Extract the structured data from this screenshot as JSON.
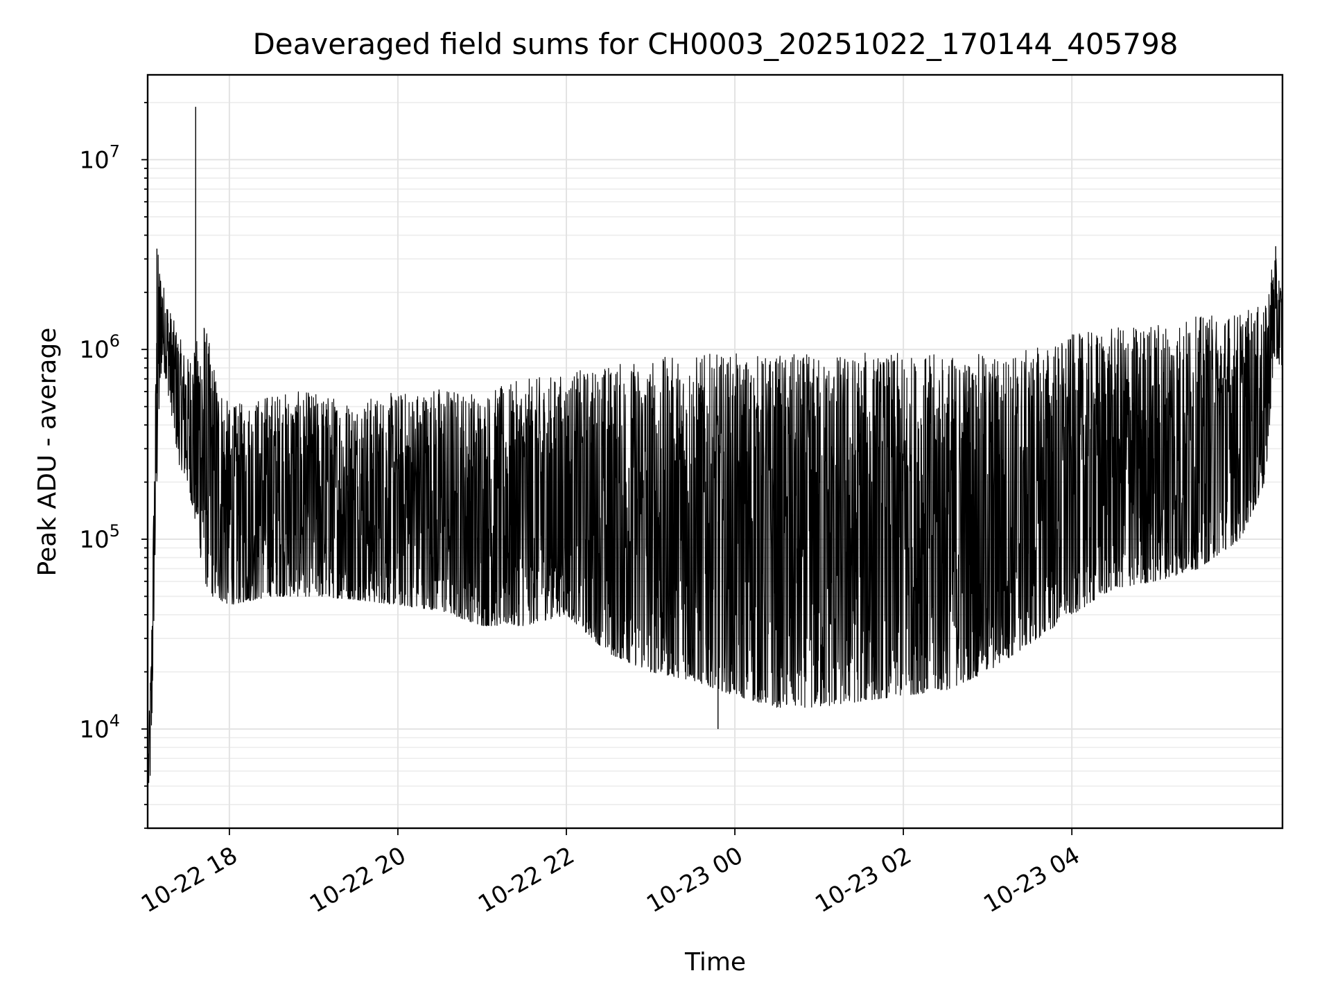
{
  "chart_data": {
    "type": "line",
    "title": "Deaveraged field sums for CH0003_20251022_170144_405798",
    "xlabel": "Time",
    "ylabel": "Peak ADU - average",
    "yscale": "log",
    "ylim": [
      3000,
      28000000
    ],
    "xlim_hours": [
      -0.97,
      12.5
    ],
    "x_origin": "2025-10-22 18:00",
    "grid": true,
    "legend": "none",
    "line_color": "#000000",
    "x_ticks": [
      {
        "hours": 0,
        "label": "10-22 18"
      },
      {
        "hours": 2,
        "label": "10-22 20"
      },
      {
        "hours": 4,
        "label": "10-22 22"
      },
      {
        "hours": 6,
        "label": "10-23 00"
      },
      {
        "hours": 8,
        "label": "10-23 02"
      },
      {
        "hours": 10,
        "label": "10-23 04"
      }
    ],
    "y_ticks": [
      {
        "value": 10000,
        "base": "10",
        "exp": "4"
      },
      {
        "value": 100000,
        "base": "10",
        "exp": "5"
      },
      {
        "value": 1000000,
        "base": "10",
        "exp": "6"
      },
      {
        "value": 10000000,
        "base": "10",
        "exp": "7"
      }
    ],
    "envelope": [
      {
        "t": -0.96,
        "low": 4500,
        "high": 9000
      },
      {
        "t": -0.93,
        "low": 6000,
        "high": 25000
      },
      {
        "t": -0.9,
        "low": 30000,
        "high": 150000
      },
      {
        "t": -0.85,
        "low": 300000,
        "high": 3400000
      },
      {
        "t": -0.8,
        "low": 900000,
        "high": 2400000
      },
      {
        "t": -0.7,
        "low": 500000,
        "high": 1600000
      },
      {
        "t": -0.6,
        "low": 250000,
        "high": 1200000
      },
      {
        "t": -0.5,
        "low": 200000,
        "high": 900000
      },
      {
        "t": -0.4,
        "low": 120000,
        "high": 1100000
      },
      {
        "t": -0.3,
        "low": 60000,
        "high": 1500000
      },
      {
        "t": -0.2,
        "low": 50000,
        "high": 900000
      },
      {
        "t": 0.0,
        "low": 45000,
        "high": 500000
      },
      {
        "t": 0.5,
        "low": 50000,
        "high": 600000
      },
      {
        "t": 1.0,
        "low": 50000,
        "high": 600000
      },
      {
        "t": 1.5,
        "low": 48000,
        "high": 550000
      },
      {
        "t": 2.0,
        "low": 45000,
        "high": 600000
      },
      {
        "t": 2.5,
        "low": 42000,
        "high": 650000
      },
      {
        "t": 3.0,
        "low": 35000,
        "high": 600000
      },
      {
        "t": 3.5,
        "low": 35000,
        "high": 700000
      },
      {
        "t": 4.0,
        "low": 40000,
        "high": 750000
      },
      {
        "t": 4.5,
        "low": 25000,
        "high": 850000
      },
      {
        "t": 5.0,
        "low": 20000,
        "high": 900000
      },
      {
        "t": 5.5,
        "low": 18000,
        "high": 950000
      },
      {
        "t": 6.0,
        "low": 15000,
        "high": 950000
      },
      {
        "t": 6.5,
        "low": 13000,
        "high": 950000
      },
      {
        "t": 7.0,
        "low": 13000,
        "high": 950000
      },
      {
        "t": 7.5,
        "low": 14000,
        "high": 980000
      },
      {
        "t": 8.0,
        "low": 15000,
        "high": 950000
      },
      {
        "t": 8.5,
        "low": 16000,
        "high": 950000
      },
      {
        "t": 9.0,
        "low": 20000,
        "high": 950000
      },
      {
        "t": 9.5,
        "low": 28000,
        "high": 1000000
      },
      {
        "t": 10.0,
        "low": 40000,
        "high": 1200000
      },
      {
        "t": 10.5,
        "low": 55000,
        "high": 1300000
      },
      {
        "t": 11.0,
        "low": 60000,
        "high": 1400000
      },
      {
        "t": 11.5,
        "low": 70000,
        "high": 1500000
      },
      {
        "t": 12.0,
        "low": 100000,
        "high": 1600000
      },
      {
        "t": 12.3,
        "low": 200000,
        "high": 1700000
      },
      {
        "t": 12.4,
        "low": 900000,
        "high": 3400000
      },
      {
        "t": 12.5,
        "low": 800000,
        "high": 2000000
      }
    ],
    "spikes": [
      {
        "t": -0.4,
        "value": 19000000
      },
      {
        "t": -0.86,
        "value": 3400000
      },
      {
        "t": 12.42,
        "value": 3500000
      },
      {
        "t": 5.8,
        "value": 10000
      }
    ]
  }
}
